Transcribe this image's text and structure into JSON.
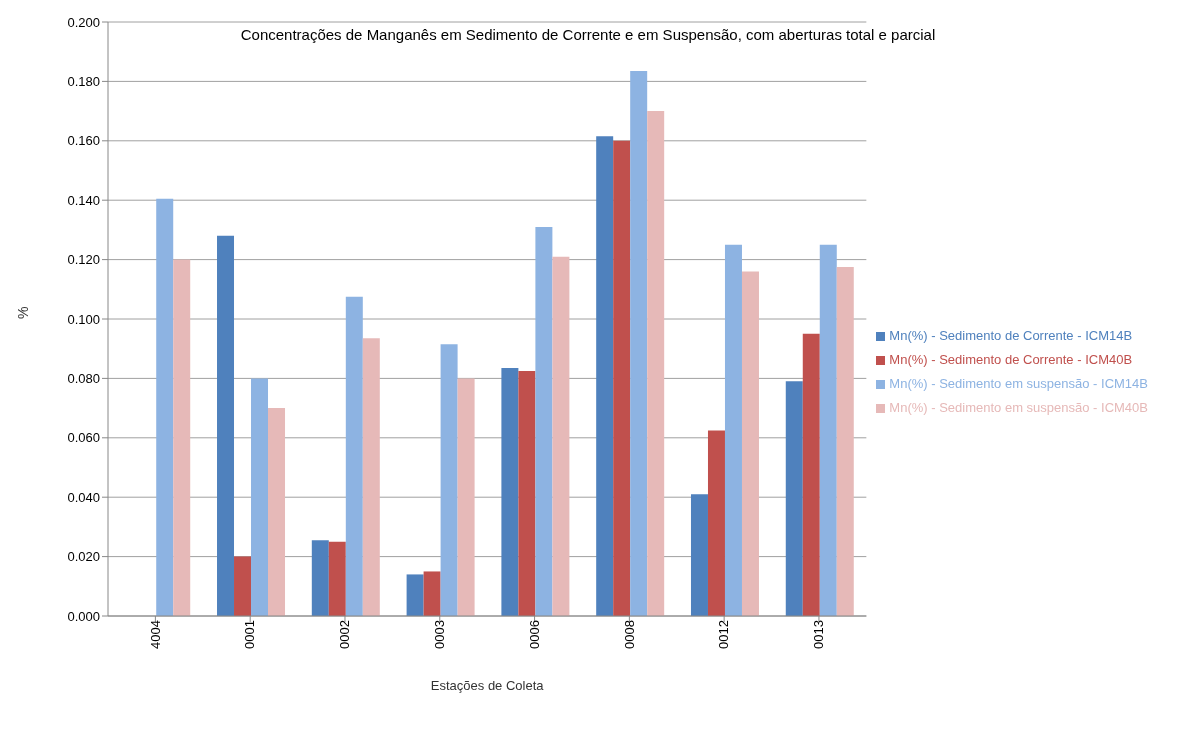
{
  "chart_data": {
    "type": "bar",
    "title": "Concentrações de Manganês em Sedimento de Corrente e em Suspensão, com aberturas total e parcial",
    "xlabel": "Estações de Coleta",
    "ylabel": "%",
    "categories": [
      "4004",
      "0001",
      "0002",
      "0003",
      "0006",
      "0008",
      "0012",
      "0013"
    ],
    "series": [
      {
        "name": "Mn(%) - Sedimento de Corrente - ICM14B",
        "color": "#4f81bd",
        "values": [
          null,
          0.128,
          0.0255,
          0.014,
          0.0835,
          0.1615,
          0.041,
          0.079
        ]
      },
      {
        "name": "Mn(%) - Sedimento de Corrente - ICM40B",
        "color": "#c0504d",
        "values": [
          null,
          0.02,
          0.025,
          0.015,
          0.0825,
          0.16,
          0.0625,
          0.095
        ]
      },
      {
        "name": "Mn(%) - Sedimento em suspensão - ICM14B",
        "color": "#8db3e2",
        "values": [
          0.1405,
          0.08,
          0.1075,
          0.0915,
          0.131,
          0.1835,
          0.125,
          0.125
        ]
      },
      {
        "name": "Mn(%) - Sedimento em suspensão - ICM40B",
        "color": "#e6b9b8",
        "values": [
          0.12,
          0.07,
          0.0935,
          0.08,
          0.121,
          0.17,
          0.116,
          0.1175
        ]
      }
    ],
    "ylim": [
      0,
      0.2
    ],
    "yticks": [
      {
        "value": 0,
        "label": "0.000"
      },
      {
        "value": 0.02,
        "label": "0.020"
      },
      {
        "value": 0.04,
        "label": "0.040"
      },
      {
        "value": 0.06,
        "label": "0.060"
      },
      {
        "value": 0.08,
        "label": "0.080"
      },
      {
        "value": 0.1,
        "label": "0.100"
      },
      {
        "value": 0.12,
        "label": "0.120"
      },
      {
        "value": 0.14,
        "label": "0.140"
      },
      {
        "value": 0.16,
        "label": "0.160"
      },
      {
        "value": 0.18,
        "label": "0.180"
      },
      {
        "value": 0.2,
        "label": "0.200"
      }
    ],
    "grid": "y",
    "legend": "right"
  }
}
